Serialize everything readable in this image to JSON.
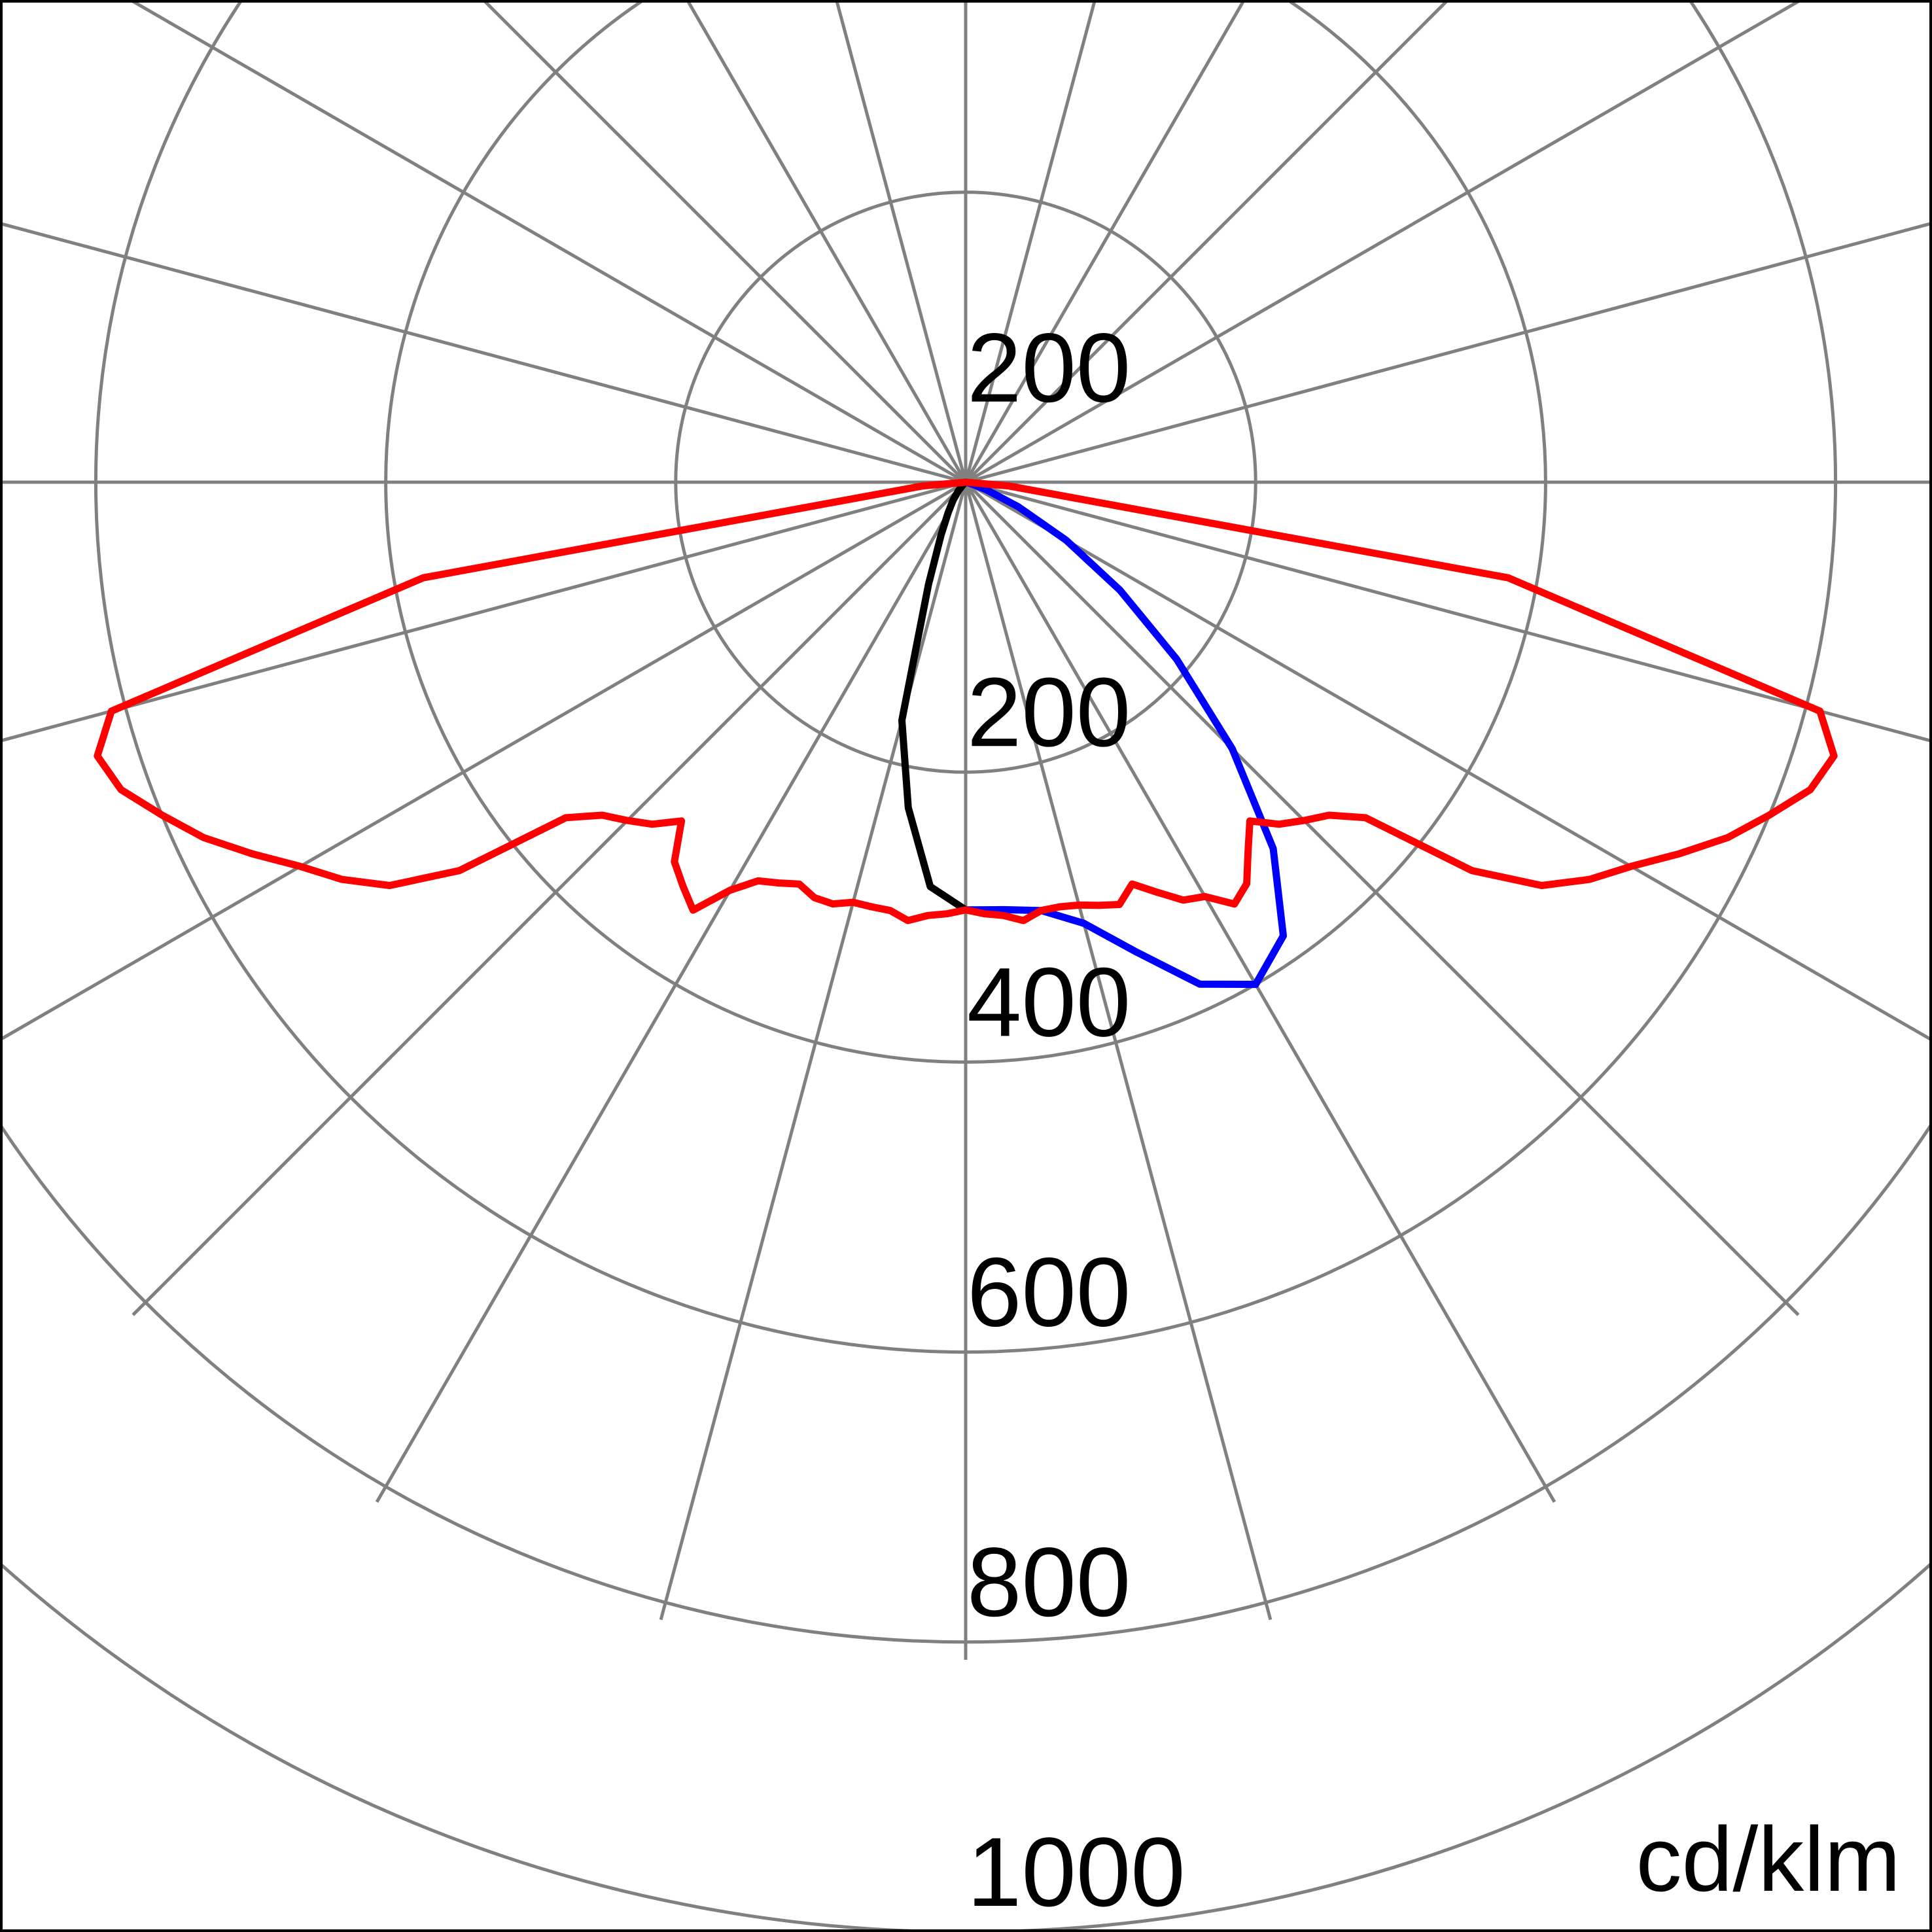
{
  "chart_data": {
    "type": "polar",
    "unit": "cd/klm",
    "rlim": [
      0,
      1000
    ],
    "radial_ticks": [
      200,
      400,
      600,
      800,
      1000
    ],
    "upper_tick": 200,
    "angular_grid_step_deg": 15,
    "grid": true,
    "colors": {
      "grid": "#808080",
      "frame": "#000000"
    },
    "series": [
      {
        "color": "#000000",
        "angles_deg": [
          -90,
          -85,
          -80,
          -75,
          -70,
          -65,
          -60,
          -55,
          -50,
          -45,
          -40,
          -35,
          -30,
          -25,
          -20,
          -15,
          -10,
          -5,
          0
        ],
        "values": [
          0,
          0,
          0,
          0,
          0,
          0,
          0,
          0,
          0,
          3,
          8,
          15,
          24,
          40,
          75,
          170,
          228,
          280,
          295
        ]
      },
      {
        "color": "#0000ff",
        "angles_deg": [
          0,
          5,
          10,
          15,
          20,
          25,
          30,
          35,
          40,
          45,
          50,
          55,
          60,
          65,
          70,
          75,
          80,
          85,
          90
        ],
        "values": [
          295,
          296,
          300,
          315,
          345,
          382,
          400,
          382,
          330,
          260,
          190,
          130,
          80,
          40,
          15,
          3,
          0,
          0,
          0
        ]
      },
      {
        "color": "#ff0000",
        "angles_deg": [
          -90,
          -85,
          -80,
          -75,
          -72.5,
          -70,
          -67.5,
          -65,
          -62.5,
          -60,
          -57.5,
          -55,
          -52.5,
          -50,
          -47.5,
          -45,
          -42.5,
          -40,
          -37.5,
          -35,
          -32.5,
          -30,
          -27.5,
          -25,
          -22.5,
          -20,
          -17.5,
          -15,
          -12.5,
          -10,
          -7.5,
          -5,
          -2.5,
          0,
          2.5,
          5,
          7.5,
          10,
          12.5,
          15,
          17.5,
          20,
          22.5,
          25,
          27.5,
          30,
          32.5,
          35,
          37.5,
          40,
          42.5,
          45,
          47.5,
          50,
          52.5,
          55,
          57.5,
          60,
          62.5,
          65,
          67.5,
          70,
          72.5,
          75,
          80,
          85,
          90
        ],
        "values": [
          0,
          30,
          380,
          610,
          628,
          620,
          600,
          580,
          555,
          530,
          510,
          485,
          440,
          360,
          340,
          330,
          320,
          305,
          330,
          340,
          350,
          325,
          310,
          305,
          300,
          305,
          305,
          300,
          300,
          300,
          305,
          300,
          298,
          295,
          298,
          300,
          305,
          300,
          300,
          302,
          306,
          310,
          300,
          312,
          325,
          330,
          345,
          338,
          320,
          305,
          320,
          330,
          340,
          360,
          440,
          485,
          510,
          530,
          555,
          580,
          600,
          620,
          628,
          610,
          380,
          30,
          0
        ]
      }
    ]
  }
}
